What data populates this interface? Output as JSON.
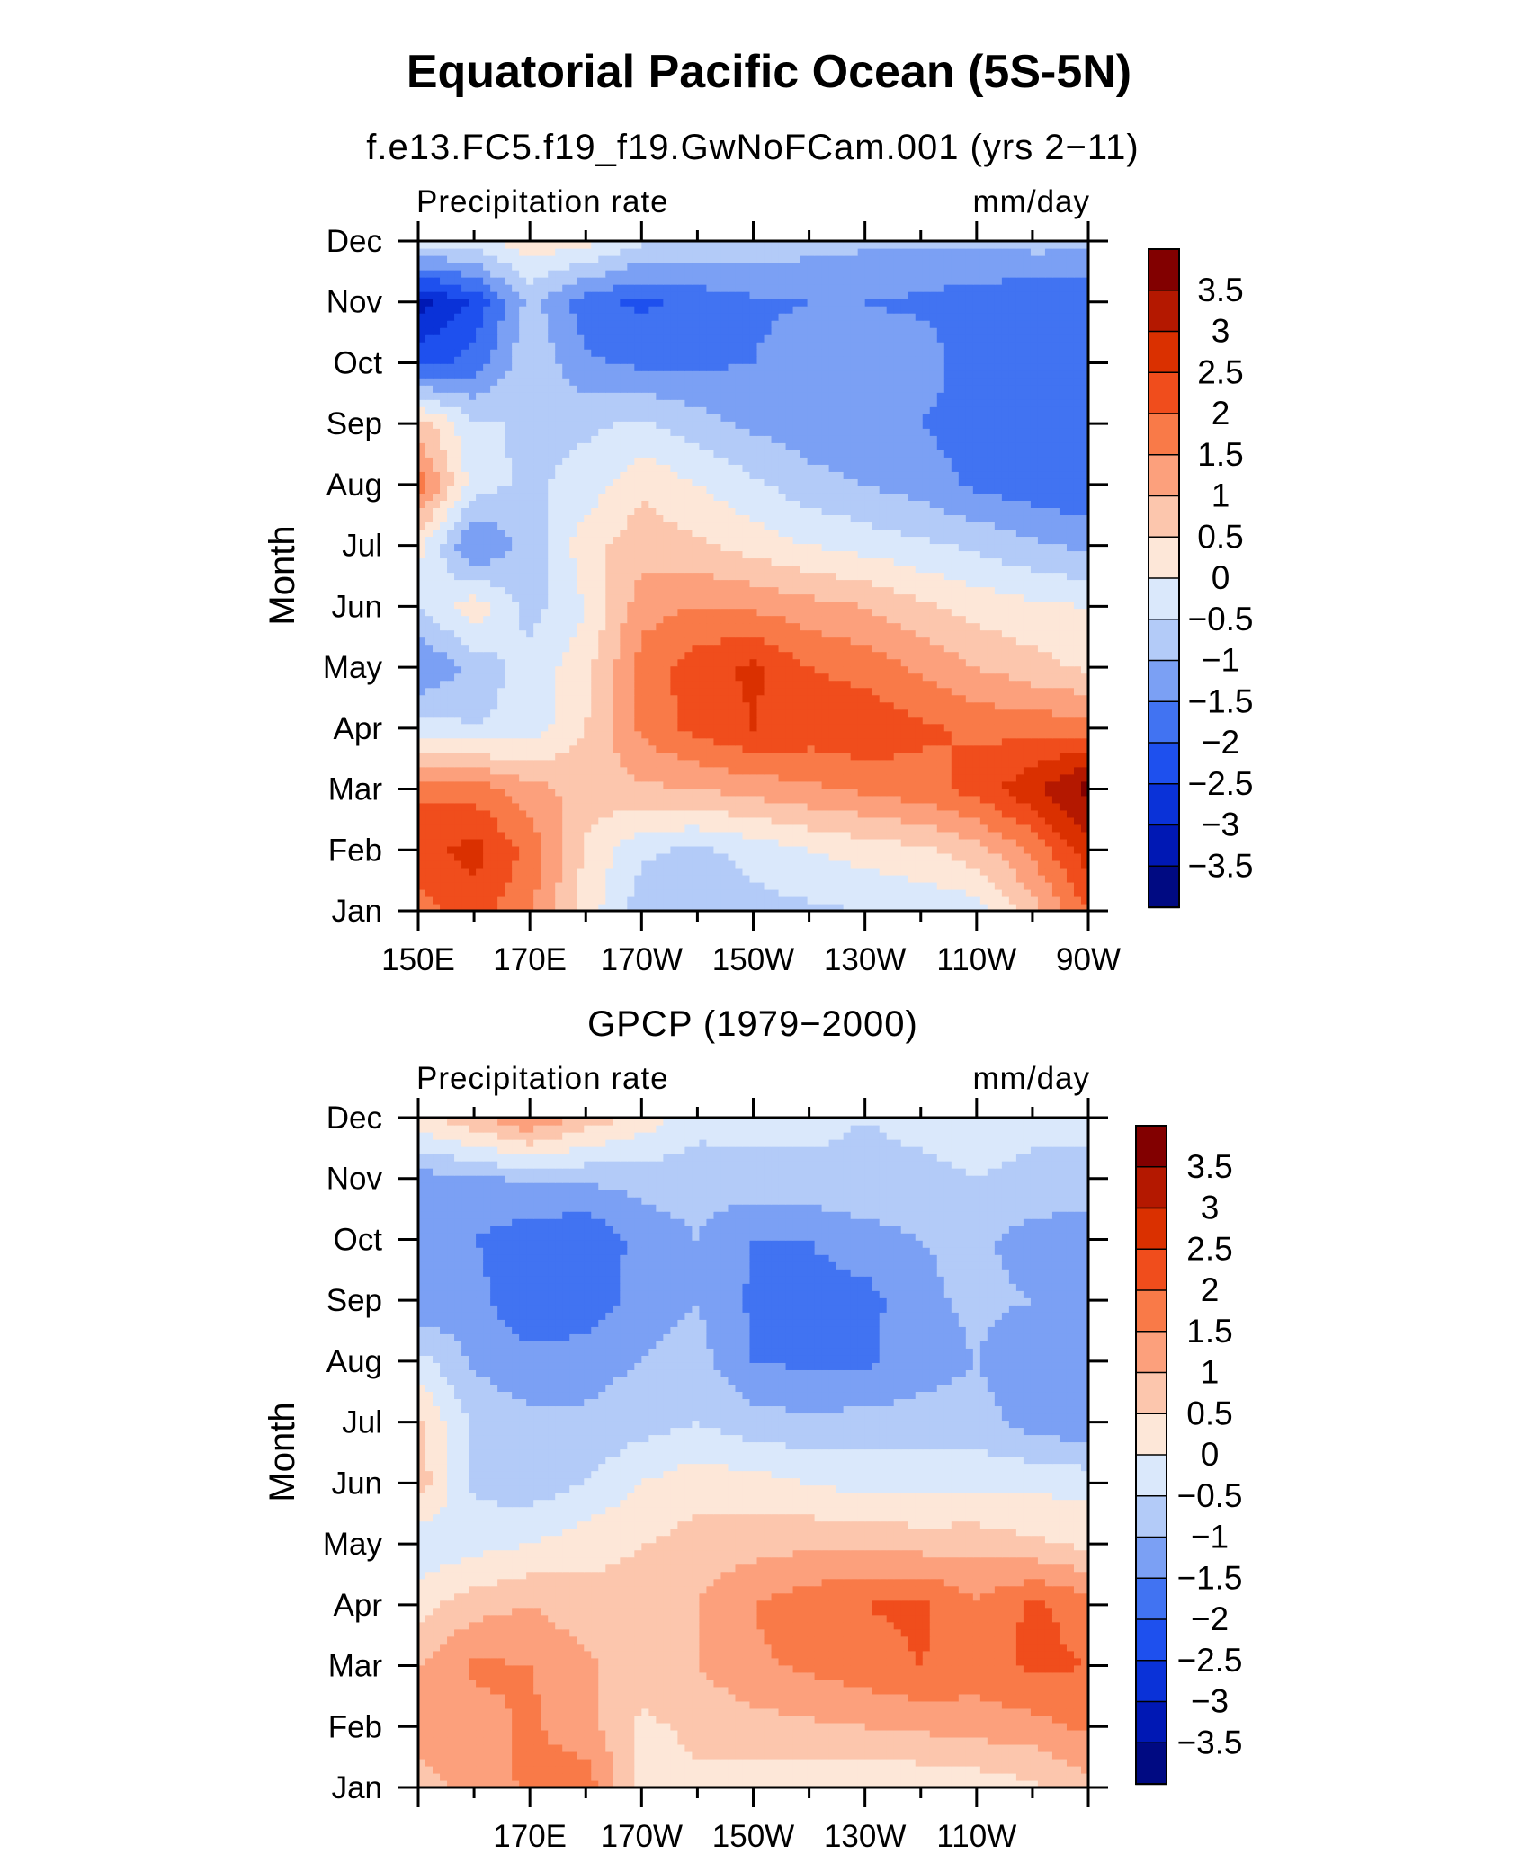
{
  "figure": {
    "title": "Equatorial Pacific Ocean (5S-5N)"
  },
  "colormap": {
    "levels": [
      -3.5,
      -3,
      -2.5,
      -2,
      -1.5,
      -1,
      -0.5,
      0,
      0.5,
      1,
      1.5,
      2,
      2.5,
      3,
      3.5
    ],
    "labels": [
      "3.5",
      "3",
      "2.5",
      "2",
      "1.5",
      "1",
      "0.5",
      "0",
      "−0.5",
      "−1",
      "−1.5",
      "−2",
      "−2.5",
      "−3",
      "−3.5"
    ],
    "colors": [
      "#000a82",
      "#0018b4",
      "#0a32d8",
      "#1e50ee",
      "#4173f2",
      "#7ba0f4",
      "#b3cbf8",
      "#dae8fb",
      "#fde7d8",
      "#fcc6ad",
      "#fca07c",
      "#f97a48",
      "#f04d1c",
      "#da3000",
      "#b41800",
      "#820000"
    ]
  },
  "chart_data": [
    {
      "type": "heatmap",
      "title": "f.e13.FC5.f19_f19.GwNoFCam.001 (yrs 2−11)",
      "corner_left": "Precipitation rate",
      "corner_right": "mm/day",
      "ylabel": "Month",
      "xlabel": "",
      "x_tick_labels": [
        "150E",
        "170E",
        "170W",
        "150W",
        "130W",
        "110W",
        "90W"
      ],
      "y_tick_labels": [
        "Jan",
        "Feb",
        "Mar",
        "Apr",
        "May",
        "Jun",
        "Jul",
        "Aug",
        "Sep",
        "Oct",
        "Nov",
        "Dec"
      ],
      "x": [
        "150E",
        "160E",
        "170E",
        "180",
        "170W",
        "160W",
        "150W",
        "140W",
        "130W",
        "120W",
        "110W",
        "100W",
        "90W"
      ],
      "y": [
        "Jan",
        "Feb",
        "Mar",
        "Apr",
        "May",
        "Jun",
        "Jul",
        "Aug",
        "Sep",
        "Oct",
        "Nov",
        "Dec"
      ],
      "xlim": [
        "150E",
        "90W"
      ],
      "ylim": [
        "Jan",
        "Dec"
      ],
      "z": [
        [
          1.8,
          2.2,
          1.6,
          0.3,
          -0.8,
          -1.0,
          -0.7,
          -0.6,
          -0.5,
          -0.4,
          -0.3,
          0.8,
          2.0
        ],
        [
          2.3,
          2.7,
          1.8,
          0.4,
          -0.4,
          -0.6,
          -0.3,
          0.0,
          0.2,
          0.4,
          0.8,
          1.6,
          2.8
        ],
        [
          1.9,
          1.8,
          1.2,
          0.8,
          0.9,
          1.0,
          1.2,
          1.4,
          1.6,
          1.8,
          2.2,
          2.9,
          3.7
        ],
        [
          -0.2,
          -0.5,
          -0.3,
          0.5,
          1.6,
          2.2,
          2.5,
          2.3,
          2.4,
          2.1,
          1.9,
          1.8,
          1.8
        ],
        [
          -1.6,
          -0.8,
          -0.3,
          0.3,
          1.7,
          2.3,
          2.6,
          2.0,
          1.8,
          1.4,
          1.0,
          0.7,
          0.4
        ],
        [
          -0.5,
          0.3,
          -0.7,
          0.0,
          1.3,
          1.5,
          1.4,
          1.2,
          1.0,
          0.6,
          0.3,
          0.1,
          0.0
        ],
        [
          0.2,
          -1.6,
          -0.8,
          0.3,
          0.8,
          0.6,
          0.3,
          0.0,
          -0.2,
          -0.4,
          -0.6,
          -0.9,
          -1.1
        ],
        [
          1.8,
          -0.3,
          -0.6,
          -0.3,
          0.4,
          0.0,
          -0.4,
          -0.8,
          -1.0,
          -1.2,
          -1.6,
          -1.8,
          -2.0
        ],
        [
          0.8,
          -0.4,
          -0.6,
          -0.6,
          -0.4,
          -0.8,
          -1.1,
          -1.3,
          -1.4,
          -1.5,
          -1.8,
          -1.9,
          -1.9
        ],
        [
          -2.2,
          -1.8,
          -0.6,
          -1.4,
          -1.6,
          -1.6,
          -1.5,
          -1.2,
          -1.2,
          -1.2,
          -1.8,
          -1.8,
          -1.9
        ],
        [
          -3.2,
          -2.4,
          -0.8,
          -1.8,
          -2.1,
          -1.8,
          -1.6,
          -1.5,
          -1.5,
          -1.6,
          -1.8,
          -1.9,
          -2.0
        ],
        [
          -0.3,
          -0.2,
          0.3,
          0.2,
          -0.4,
          -0.6,
          -0.7,
          -0.8,
          -0.9,
          -0.9,
          -0.9,
          -0.8,
          -0.8
        ]
      ]
    },
    {
      "type": "heatmap",
      "title": "GPCP (1979−2000)",
      "corner_left": "Precipitation rate",
      "corner_right": "mm/day",
      "ylabel": "Month",
      "xlabel": "",
      "x_tick_labels": [
        "170E",
        "170W",
        "150W",
        "130W",
        "110W"
      ],
      "y_tick_labels": [
        "Jan",
        "Feb",
        "Mar",
        "Apr",
        "May",
        "Jun",
        "Jul",
        "Aug",
        "Sep",
        "Oct",
        "Nov",
        "Dec"
      ],
      "x": [
        "150E",
        "160E",
        "170E",
        "180",
        "170W",
        "160W",
        "150W",
        "140W",
        "130W",
        "120W",
        "110W",
        "100W",
        "90W"
      ],
      "y": [
        "Jan",
        "Feb",
        "Mar",
        "Apr",
        "May",
        "Jun",
        "Jul",
        "Aug",
        "Sep",
        "Oct",
        "Nov",
        "Dec"
      ],
      "xlim": [
        "150E",
        "90W"
      ],
      "ylim": [
        "Jan",
        "Dec"
      ],
      "z": [
        [
          0.8,
          1.2,
          1.6,
          1.8,
          0.3,
          0.4,
          0.2,
          0.1,
          0.0,
          0.1,
          0.2,
          0.4,
          0.8
        ],
        [
          1.2,
          1.3,
          1.6,
          1.2,
          0.4,
          0.6,
          0.8,
          0.9,
          1.0,
          1.1,
          1.2,
          1.3,
          1.6
        ],
        [
          1.0,
          1.6,
          1.5,
          1.1,
          0.7,
          1.0,
          1.4,
          1.6,
          1.8,
          2.0,
          1.8,
          2.1,
          2.0
        ],
        [
          0.3,
          0.8,
          1.0,
          0.7,
          0.7,
          1.0,
          1.5,
          1.8,
          2.0,
          2.1,
          1.6,
          2.1,
          1.8
        ],
        [
          -0.4,
          -0.2,
          0.0,
          0.3,
          0.5,
          0.7,
          0.8,
          0.9,
          0.9,
          0.8,
          0.8,
          0.6,
          0.4
        ],
        [
          0.8,
          -0.6,
          -0.8,
          -0.5,
          0.0,
          0.3,
          0.2,
          0.0,
          -0.2,
          -0.2,
          -0.1,
          -0.1,
          -0.2
        ],
        [
          0.6,
          -0.6,
          -0.9,
          -0.9,
          -0.7,
          -0.5,
          -0.8,
          -0.9,
          -0.8,
          -0.8,
          -0.8,
          -1.2,
          -1.4
        ],
        [
          -0.3,
          -1.1,
          -1.3,
          -1.2,
          -1.0,
          -0.8,
          -1.5,
          -1.6,
          -1.6,
          -1.2,
          -1.0,
          -1.4,
          -1.5
        ],
        [
          -1.4,
          -1.3,
          -2.0,
          -1.9,
          -1.2,
          -1.0,
          -1.6,
          -1.7,
          -1.7,
          -1.1,
          -0.9,
          -1.0,
          -1.4
        ],
        [
          -1.1,
          -1.5,
          -1.8,
          -2.0,
          -1.3,
          -1.0,
          -1.5,
          -1.5,
          -1.2,
          -1.0,
          -0.9,
          -1.2,
          -1.4
        ],
        [
          -1.2,
          -1.1,
          -0.9,
          -0.9,
          -0.8,
          -0.8,
          -0.7,
          -0.6,
          -0.6,
          -0.6,
          -0.5,
          -0.6,
          -0.6
        ],
        [
          0.3,
          0.9,
          1.5,
          0.8,
          0.3,
          -0.3,
          -0.3,
          -0.4,
          -0.5,
          -0.4,
          -0.3,
          -0.4,
          -0.4
        ]
      ]
    }
  ]
}
